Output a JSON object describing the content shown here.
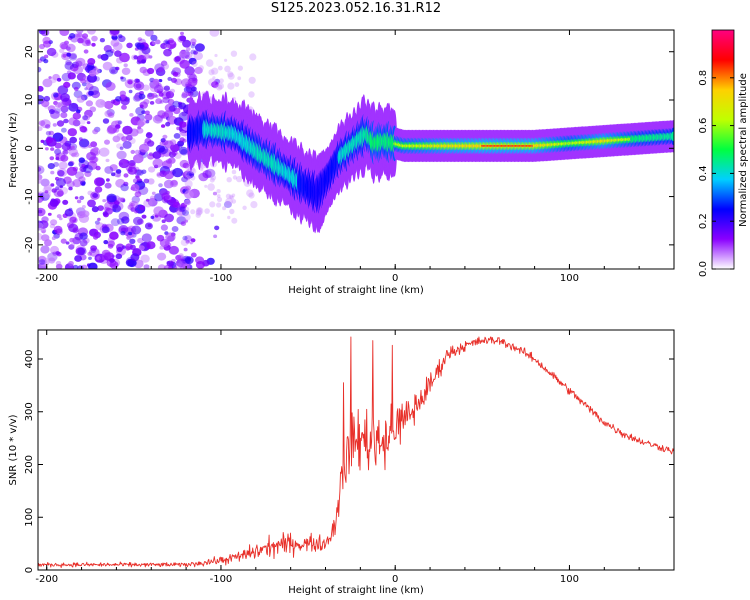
{
  "title": "S125.2023.052.16.31.R12",
  "colors": {
    "snr_line": "#e8302a",
    "axis": "#000000",
    "background": "#ffffff"
  },
  "chart_data": [
    {
      "type": "heatmap",
      "xlabel": "Height of straight line (km)",
      "ylabel": "Frequency (Hz)",
      "xlim": [
        -205,
        160
      ],
      "ylim": [
        -25,
        24.5
      ],
      "xticks": [
        -200,
        -100,
        0,
        100
      ],
      "yticks": [
        -20,
        -10,
        0,
        10,
        20
      ],
      "colorbar": {
        "label": "Normalized spectral amplitude",
        "range": [
          0,
          1
        ],
        "ticks": [
          0.0,
          0.2,
          0.4,
          0.6,
          0.8
        ],
        "colormap": [
          "#ffffff",
          "#8a00ff",
          "#0000ff",
          "#00d0ff",
          "#00ff40",
          "#c0ff00",
          "#ffd000",
          "#ff0000",
          "#ff0080"
        ]
      },
      "ridge": {
        "x": [
          -118,
          -110,
          -100,
          -92,
          -85,
          -78,
          -70,
          -62,
          -55,
          -48,
          -44,
          -38,
          -32,
          -26,
          -20,
          -16,
          -12,
          -6,
          0,
          5,
          15,
          30,
          50,
          80,
          100,
          120,
          140,
          160
        ],
        "y": [
          3,
          4,
          3.5,
          3,
          1,
          -1,
          -3,
          -5,
          -7,
          -8.5,
          -9.5,
          -6,
          -2,
          0,
          2,
          3,
          1,
          1.5,
          1,
          0.5,
          0.5,
          0.5,
          0.5,
          0.5,
          1,
          1.5,
          2,
          2.5
        ],
        "peak_amplitude": [
          0.35,
          0.4,
          0.45,
          0.4,
          0.4,
          0.45,
          0.45,
          0.4,
          0.4,
          0.35,
          0.3,
          0.35,
          0.4,
          0.45,
          0.45,
          0.5,
          0.6,
          0.55,
          0.6,
          0.65,
          0.7,
          0.8,
          0.85,
          0.85,
          0.6,
          0.8,
          0.55,
          0.5
        ]
      }
    },
    {
      "type": "line",
      "xlabel": "Height of straight line (km)",
      "ylabel": "SNR (10 * v/v)",
      "xlim": [
        -205,
        160
      ],
      "ylim": [
        0,
        455
      ],
      "xticks": [
        -200,
        -100,
        0,
        100
      ],
      "yticks": [
        0,
        100,
        200,
        300,
        400
      ],
      "series": [
        {
          "x": [
            -205,
            -180,
            -160,
            -140,
            -120,
            -100,
            -90,
            -80,
            -70,
            -60,
            -50,
            -40,
            -35,
            -30,
            -25,
            -20,
            -15,
            -10,
            -5,
            0,
            10,
            20,
            30,
            40,
            50,
            60,
            70,
            80,
            90,
            100,
            110,
            120,
            130,
            140,
            150,
            160
          ],
          "values": [
            10,
            10,
            10,
            10,
            10,
            18,
            25,
            35,
            45,
            50,
            50,
            50,
            80,
            190,
            240,
            250,
            250,
            250,
            250,
            270,
            300,
            350,
            410,
            425,
            435,
            435,
            420,
            400,
            370,
            340,
            310,
            280,
            260,
            245,
            235,
            225
          ],
          "noise": [
            6,
            6,
            6,
            6,
            6,
            12,
            15,
            25,
            30,
            30,
            25,
            20,
            45,
            70,
            80,
            90,
            90,
            90,
            80,
            60,
            50,
            35,
            20,
            15,
            12,
            12,
            12,
            12,
            12,
            12,
            12,
            12,
            12,
            10,
            10,
            10
          ]
        }
      ]
    }
  ]
}
